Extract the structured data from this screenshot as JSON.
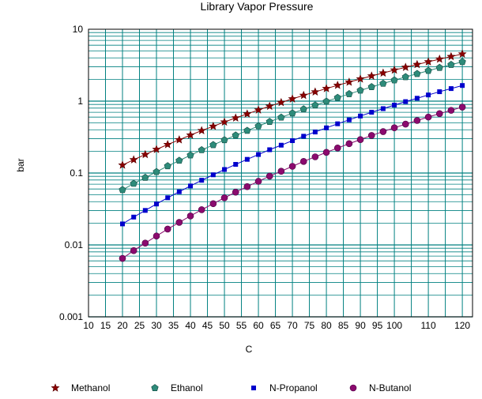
{
  "chart_data": {
    "type": "line",
    "title": "Library Vapor Pressure",
    "xlabel": "C",
    "ylabel": "bar",
    "xlim": [
      10,
      123
    ],
    "ylim": [
      0.001,
      10
    ],
    "y_scale": "log",
    "grid": true,
    "legend_position": "bottom",
    "x_ticks": [
      10,
      15,
      20,
      25,
      30,
      35,
      40,
      45,
      50,
      55,
      60,
      65,
      70,
      75,
      80,
      85,
      90,
      95,
      100,
      110,
      120
    ],
    "y_ticks": [
      "10",
      "1",
      "0.1",
      "0.01",
      "0.001"
    ],
    "series": [
      {
        "name": "Methanol",
        "marker": "star",
        "color": "#8b0000",
        "x": [
          20,
          23.3,
          26.7,
          30,
          33.3,
          36.7,
          40,
          43.3,
          46.7,
          50,
          53.3,
          56.7,
          60,
          63.3,
          66.7,
          70,
          73.3,
          76.7,
          80,
          83.3,
          86.7,
          90,
          93.3,
          96.7,
          100,
          103.3,
          106.7,
          110,
          113.3,
          116.7,
          120
        ],
        "y": [
          0.129,
          0.153,
          0.181,
          0.213,
          0.249,
          0.29,
          0.337,
          0.389,
          0.447,
          0.512,
          0.584,
          0.664,
          0.753,
          0.851,
          0.958,
          1.075,
          1.204,
          1.344,
          1.496,
          1.661,
          1.84,
          2.032,
          2.24,
          2.463,
          2.703,
          2.959,
          3.234,
          3.527,
          3.839,
          4.171,
          4.524
        ]
      },
      {
        "name": "Ethanol",
        "marker": "pentagon",
        "color": "#2e8b7a",
        "x": [
          20,
          23.3,
          26.7,
          30,
          33.3,
          36.7,
          40,
          43.3,
          46.7,
          50,
          53.3,
          56.7,
          60,
          63.3,
          66.7,
          70,
          73.3,
          76.7,
          80,
          83.3,
          86.7,
          90,
          93.3,
          96.7,
          100,
          103.3,
          106.7,
          110,
          113.3,
          116.7,
          120
        ],
        "y": [
          0.0584,
          0.0713,
          0.0864,
          0.104,
          0.125,
          0.149,
          0.177,
          0.209,
          0.246,
          0.288,
          0.335,
          0.389,
          0.45,
          0.518,
          0.594,
          0.679,
          0.773,
          0.877,
          0.992,
          1.119,
          1.258,
          1.41,
          1.577,
          1.758,
          1.956,
          2.17,
          2.401,
          2.651,
          2.92,
          3.209,
          3.519
        ]
      },
      {
        "name": "N-Propanol",
        "marker": "square",
        "color": "#0000cc",
        "x": [
          20,
          23.3,
          26.7,
          30,
          33.3,
          36.7,
          40,
          43.3,
          46.7,
          50,
          53.3,
          56.7,
          60,
          63.3,
          66.7,
          70,
          73.3,
          76.7,
          80,
          83.3,
          86.7,
          90,
          93.3,
          96.7,
          100,
          103.3,
          106.7,
          110,
          113.3,
          116.7,
          120
        ],
        "y": [
          0.0196,
          0.0244,
          0.0302,
          0.0371,
          0.0453,
          0.0549,
          0.0661,
          0.0793,
          0.0945,
          0.112,
          0.132,
          0.155,
          0.181,
          0.211,
          0.244,
          0.282,
          0.325,
          0.372,
          0.425,
          0.484,
          0.549,
          0.621,
          0.7,
          0.786,
          0.881,
          0.984,
          1.097,
          1.219,
          1.352,
          1.495,
          1.65
        ]
      },
      {
        "name": "N-Butanol",
        "marker": "circle",
        "color": "#8b0a6e",
        "x": [
          20,
          23.3,
          26.7,
          30,
          33.3,
          36.7,
          40,
          43.3,
          46.7,
          50,
          53.3,
          56.7,
          60,
          63.3,
          66.7,
          70,
          73.3,
          76.7,
          80,
          83.3,
          86.7,
          90,
          93.3,
          96.7,
          100,
          103.3,
          106.7,
          110,
          113.3,
          116.7,
          120
        ],
        "y": [
          0.0065,
          0.00833,
          0.0106,
          0.0133,
          0.0166,
          0.0206,
          0.0253,
          0.0309,
          0.0375,
          0.0452,
          0.0542,
          0.0647,
          0.0767,
          0.0905,
          0.106,
          0.124,
          0.145,
          0.168,
          0.194,
          0.223,
          0.256,
          0.292,
          0.333,
          0.377,
          0.426,
          0.479,
          0.538,
          0.601,
          0.67,
          0.745,
          0.826
        ]
      }
    ]
  },
  "colors": {
    "grid": "#008080",
    "axis": "#000000",
    "background": "#ffffff"
  }
}
